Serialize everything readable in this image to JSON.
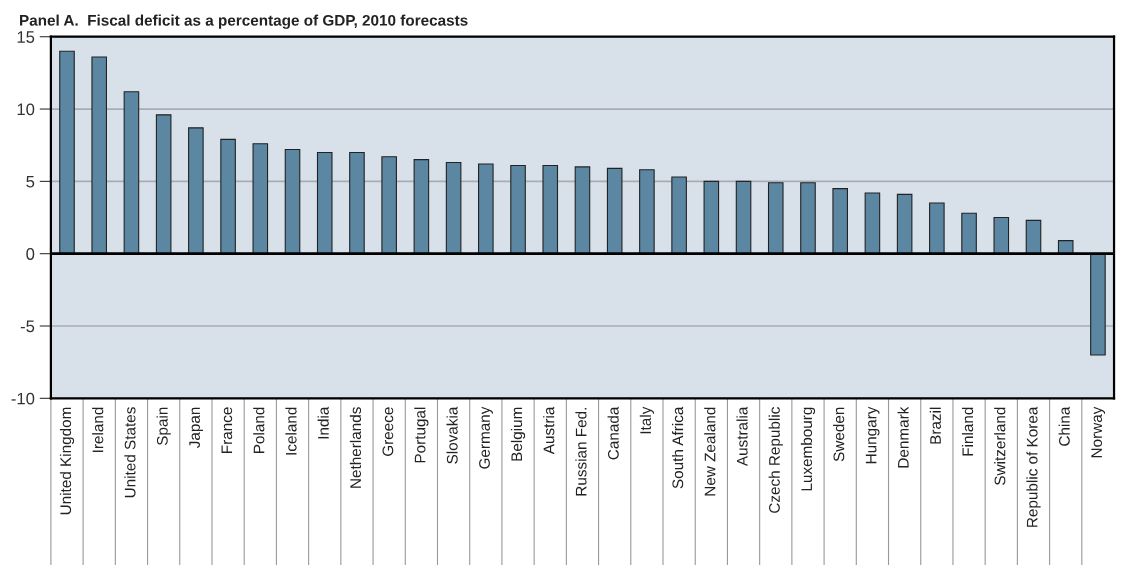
{
  "chart_data": {
    "type": "bar",
    "title": "Panel A.  Fiscal deficit as a percentage of GDP, 2010 forecasts",
    "categories": [
      "United Kingdom",
      "Ireland",
      "United States",
      "Spain",
      "Japan",
      "France",
      "Poland",
      "Iceland",
      "India",
      "Netherlands",
      "Greece",
      "Portugal",
      "Slovakia",
      "Germany",
      "Belgium",
      "Austria",
      "Russian Fed.",
      "Canada",
      "Italy",
      "South Africa",
      "New Zealand",
      "Australia",
      "Czech Republic",
      "Luxembourg",
      "Sweden",
      "Hungary",
      "Denmark",
      "Brazil",
      "Finland",
      "Switzerland",
      "Republic of Korea",
      "China",
      "Norway"
    ],
    "values": [
      14.0,
      13.6,
      11.2,
      9.6,
      8.7,
      7.9,
      7.6,
      7.2,
      7.0,
      7.0,
      6.7,
      6.5,
      6.3,
      6.2,
      6.1,
      6.1,
      6.0,
      5.9,
      5.8,
      5.3,
      5.0,
      5.0,
      4.9,
      4.9,
      4.5,
      4.2,
      4.1,
      3.5,
      2.8,
      2.5,
      2.3,
      0.9,
      -7.0
    ],
    "color": "#5b87a3",
    "ylim": [
      -10,
      15
    ],
    "yticks": [
      -10,
      -5,
      0,
      5,
      10,
      15
    ],
    "grid": "y"
  }
}
